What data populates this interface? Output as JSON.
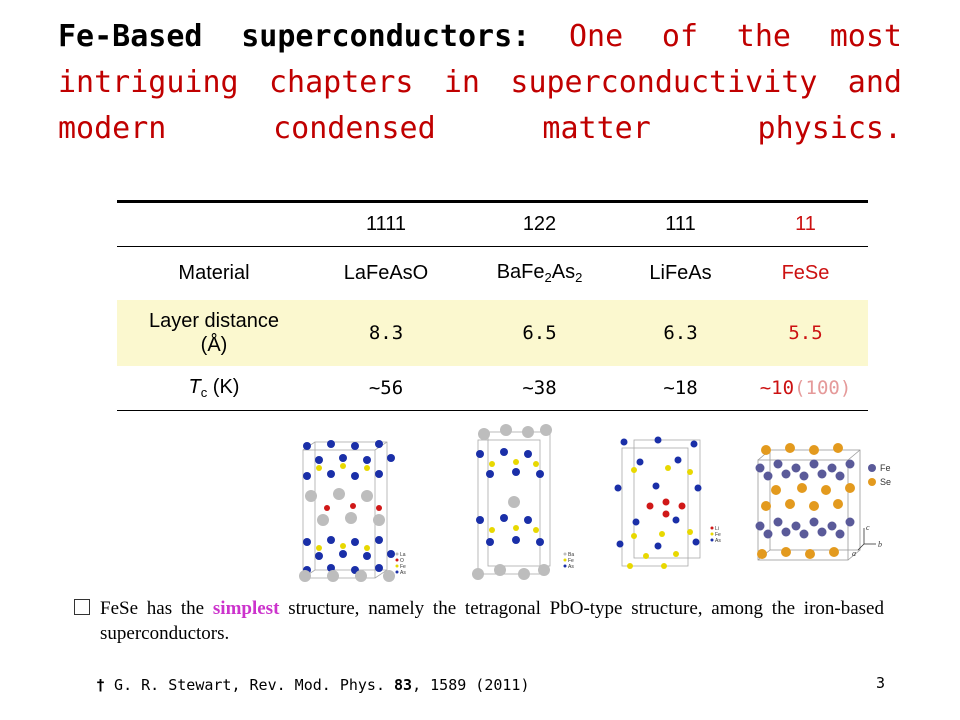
{
  "title": {
    "bold_part": "Fe-Based superconductors:",
    "rest": "One of the most intriguing chapters in superconductivity and modern condensed matter physics."
  },
  "table": {
    "headers": [
      "",
      "1111",
      "122",
      "111",
      "11"
    ],
    "material": {
      "label": "Material",
      "values": [
        "LaFeAsO",
        "BaFe",
        "2",
        "As",
        "2",
        "LiFeAs",
        "FeSe"
      ]
    },
    "layer_distance": {
      "label_line1": "Layer distance",
      "label_line2": "(Å)",
      "values": [
        "8.3",
        "6.5",
        "6.3",
        "5.5"
      ]
    },
    "tc": {
      "label_symbol": "T",
      "label_sub": "c",
      "label_unit": " (K)",
      "values": [
        "~56",
        "~38",
        "~18",
        "~10"
      ],
      "extra": "(100)"
    }
  },
  "structure_labels": {
    "s1": [
      "La",
      "O",
      "Fe",
      "As"
    ],
    "s2": [
      "Ba",
      "Fe",
      "As"
    ],
    "s3": [
      "Li",
      "Fe",
      "As"
    ],
    "s4_legend": [
      "Fe",
      "Se"
    ],
    "s4_axes": [
      "c",
      "a",
      "b"
    ]
  },
  "bullet": {
    "pre": "FeSe has the ",
    "highlight": "simplest",
    "post": " structure, namely the tetragonal PbO-type structure, among the iron-based superconductors."
  },
  "reference": {
    "dagger": "†",
    "pre": " G. R. Stewart, Rev. Mod. Phys. ",
    "volume": "83",
    "post": ", 1589 (2011)"
  },
  "page_number": "3",
  "colors": {
    "red": "#cc1111",
    "highlight_row": "#fbf8cf",
    "magenta": "#cc33cc",
    "pink": "#e59a9a"
  }
}
